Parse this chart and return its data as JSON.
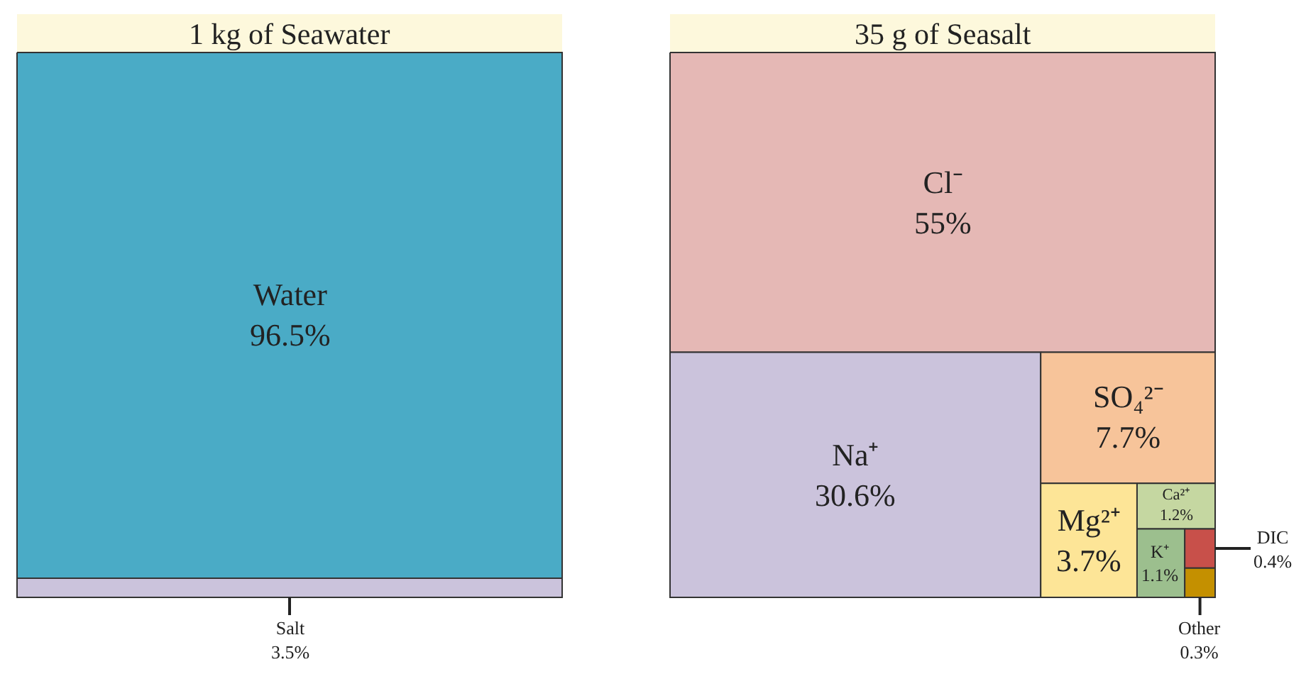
{
  "chart_data": [
    {
      "type": "other",
      "title": "1 kg of Seawater",
      "categories": [
        "Water",
        "Salt"
      ],
      "values": [
        96.5,
        3.5
      ],
      "value_labels": [
        "96.5%",
        "3.5%"
      ],
      "colors": [
        "#4aabc6",
        "#cbc3dc"
      ]
    },
    {
      "type": "other",
      "title": "35 g of Seasalt",
      "categories": [
        "Cl⁻",
        "Na⁺",
        "SO₄²⁻",
        "Mg²⁺",
        "Ca²⁺",
        "K⁺",
        "DIC",
        "Other"
      ],
      "values": [
        55,
        30.6,
        7.7,
        3.7,
        1.2,
        1.1,
        0.4,
        0.3
      ],
      "value_labels": [
        "55%",
        "30.6%",
        "7.7%",
        "3.7%",
        "1.2%",
        "1.1%",
        "0.4%",
        "0.3%"
      ],
      "colors": [
        "#e5b8b5",
        "#cbc3dc",
        "#f7c49a",
        "#fde597",
        "#c5d7a1",
        "#9cbf8e",
        "#c8504a",
        "#c49000"
      ]
    }
  ]
}
